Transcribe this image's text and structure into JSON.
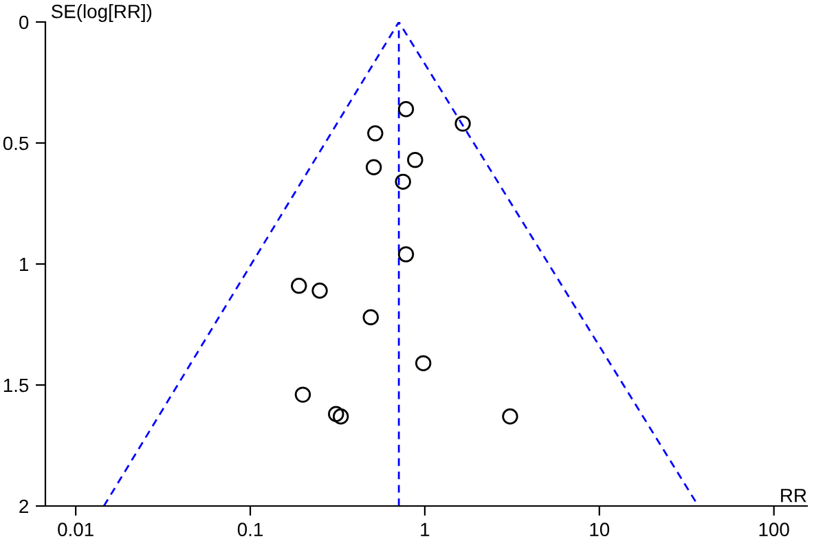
{
  "chart_data": {
    "type": "scatter",
    "xlabel": "RR",
    "ylabel": "SE(log[RR])",
    "log": "x",
    "xlim": [
      0.0067,
      155
    ],
    "ylim": [
      2,
      0
    ],
    "xticks": [
      0.01,
      0.1,
      1,
      10,
      100
    ],
    "yticks": [
      0,
      0.5,
      1,
      1.5,
      2
    ],
    "grid": false,
    "legend": false,
    "series": [
      {
        "color": "#000000",
        "marker": "circle",
        "x": [
          0.78,
          1.65,
          0.52,
          0.88,
          0.51,
          0.75,
          0.78,
          0.19,
          0.25,
          0.49,
          0.98,
          0.2,
          0.31,
          0.33,
          3.08
        ],
        "values": [
          0.36,
          0.42,
          0.46,
          0.57,
          0.6,
          0.66,
          0.96,
          1.09,
          1.11,
          1.22,
          1.41,
          1.54,
          1.62,
          1.63,
          1.63
        ]
      },
      {
        "type": "line",
        "color": "#0000ff",
        "line_style": "dashed",
        "marker": "none",
        "x": [
          0.0145,
          0.71,
          36.9
        ],
        "values": [
          2,
          0,
          2
        ]
      }
    ],
    "ref_lines": [
      {
        "axis": "x",
        "value": 0.71,
        "color": "#0000ff",
        "line_style": "dashed"
      }
    ]
  }
}
